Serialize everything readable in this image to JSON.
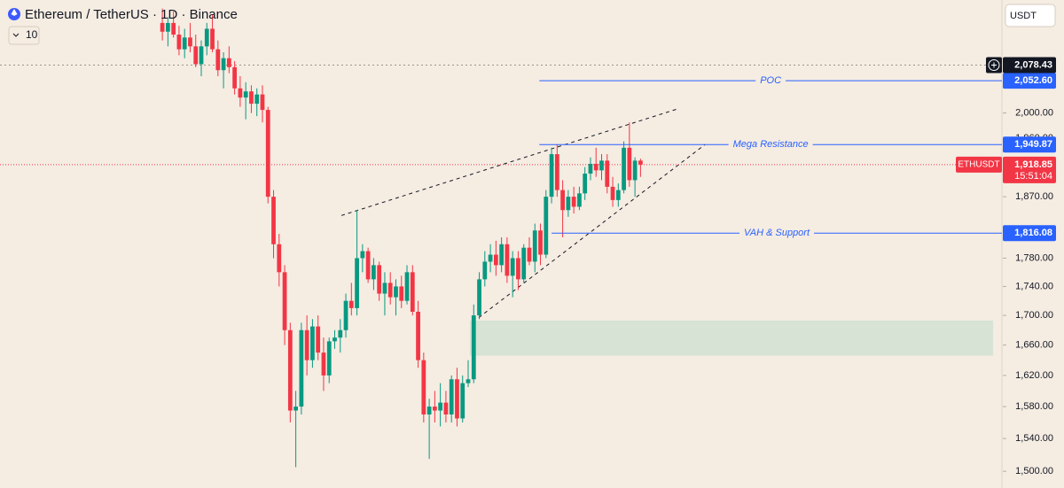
{
  "header": {
    "symbol_title": "Ethereum / TetherUS · 1D · Binance",
    "indicator_value": "10",
    "currency_button": "USDT"
  },
  "chart_data": {
    "type": "candlestick",
    "log_scale": true,
    "up_color": "#089981",
    "down_color": "#f23645",
    "ylim": [
      1480,
      2190
    ],
    "xlim": [
      -29.2,
      151
    ],
    "yticks": [
      {
        "value": 1500,
        "label": "1,500.00"
      },
      {
        "value": 1540,
        "label": "1,540.00"
      },
      {
        "value": 1580,
        "label": "1,580.00"
      },
      {
        "value": 1620,
        "label": "1,620.00"
      },
      {
        "value": 1660,
        "label": "1,660.00"
      },
      {
        "value": 1700,
        "label": "1,700.00"
      },
      {
        "value": 1740,
        "label": "1,740.00"
      },
      {
        "value": 1780,
        "label": "1,780.00"
      },
      {
        "value": 1870,
        "label": "1,870.00"
      },
      {
        "value": 1960,
        "label": "1,960.00"
      },
      {
        "value": 2000,
        "label": "2,000.00"
      }
    ],
    "ohlc": [
      [
        2150,
        2175,
        2120,
        2135
      ],
      [
        2135,
        2160,
        2110,
        2150
      ],
      [
        2150,
        2170,
        2125,
        2130
      ],
      [
        2130,
        2145,
        2095,
        2105
      ],
      [
        2105,
        2140,
        2090,
        2125
      ],
      [
        2125,
        2150,
        2100,
        2110
      ],
      [
        2110,
        2130,
        2075,
        2080
      ],
      [
        2080,
        2120,
        2060,
        2110
      ],
      [
        2110,
        2150,
        2095,
        2140
      ],
      [
        2140,
        2165,
        2100,
        2105
      ],
      [
        2105,
        2120,
        2060,
        2070
      ],
      [
        2070,
        2100,
        2040,
        2090
      ],
      [
        2090,
        2110,
        2065,
        2075
      ],
      [
        2075,
        2085,
        2030,
        2040
      ],
      [
        2040,
        2060,
        2010,
        2025
      ],
      [
        2025,
        2050,
        1990,
        2035
      ],
      [
        2035,
        2045,
        2000,
        2015
      ],
      [
        2015,
        2040,
        1995,
        2030
      ],
      [
        2030,
        2045,
        1985,
        2005
      ],
      [
        2005,
        2010,
        1860,
        1870
      ],
      [
        1870,
        1880,
        1780,
        1800
      ],
      [
        1800,
        1815,
        1740,
        1760
      ],
      [
        1760,
        1770,
        1660,
        1680
      ],
      [
        1680,
        1690,
        1560,
        1575
      ],
      [
        1575,
        1600,
        1505,
        1580
      ],
      [
        1580,
        1690,
        1570,
        1680
      ],
      [
        1680,
        1700,
        1620,
        1640
      ],
      [
        1640,
        1695,
        1630,
        1685
      ],
      [
        1685,
        1700,
        1640,
        1650
      ],
      [
        1650,
        1670,
        1600,
        1620
      ],
      [
        1620,
        1670,
        1610,
        1665
      ],
      [
        1665,
        1680,
        1655,
        1670
      ],
      [
        1670,
        1695,
        1650,
        1680
      ],
      [
        1680,
        1730,
        1670,
        1720
      ],
      [
        1720,
        1745,
        1700,
        1710
      ],
      [
        1710,
        1850,
        1700,
        1780
      ],
      [
        1780,
        1800,
        1760,
        1790
      ],
      [
        1790,
        1795,
        1745,
        1750
      ],
      [
        1750,
        1780,
        1735,
        1770
      ],
      [
        1770,
        1775,
        1720,
        1730
      ],
      [
        1730,
        1760,
        1700,
        1745
      ],
      [
        1745,
        1760,
        1715,
        1725
      ],
      [
        1725,
        1750,
        1700,
        1740
      ],
      [
        1740,
        1755,
        1710,
        1720
      ],
      [
        1720,
        1770,
        1715,
        1760
      ],
      [
        1760,
        1770,
        1700,
        1705
      ],
      [
        1705,
        1720,
        1630,
        1640
      ],
      [
        1640,
        1650,
        1560,
        1570
      ],
      [
        1570,
        1590,
        1515,
        1580
      ],
      [
        1580,
        1600,
        1560,
        1575
      ],
      [
        1575,
        1610,
        1555,
        1585
      ],
      [
        1585,
        1600,
        1560,
        1570
      ],
      [
        1570,
        1620,
        1560,
        1615
      ],
      [
        1615,
        1630,
        1555,
        1565
      ],
      [
        1565,
        1620,
        1560,
        1610
      ],
      [
        1610,
        1640,
        1605,
        1615
      ],
      [
        1615,
        1715,
        1610,
        1700
      ],
      [
        1700,
        1760,
        1695,
        1750
      ],
      [
        1750,
        1790,
        1740,
        1775
      ],
      [
        1775,
        1800,
        1760,
        1785
      ],
      [
        1785,
        1805,
        1755,
        1770
      ],
      [
        1770,
        1810,
        1760,
        1800
      ],
      [
        1800,
        1810,
        1745,
        1755
      ],
      [
        1755,
        1790,
        1725,
        1780
      ],
      [
        1780,
        1790,
        1735,
        1750
      ],
      [
        1750,
        1800,
        1745,
        1795
      ],
      [
        1795,
        1810,
        1770,
        1775
      ],
      [
        1775,
        1830,
        1760,
        1820
      ],
      [
        1820,
        1830,
        1770,
        1785
      ],
      [
        1785,
        1880,
        1780,
        1870
      ],
      [
        1870,
        1945,
        1860,
        1935
      ],
      [
        1935,
        1950,
        1870,
        1880
      ],
      [
        1880,
        1895,
        1810,
        1850
      ],
      [
        1850,
        1880,
        1840,
        1870
      ],
      [
        1870,
        1885,
        1845,
        1855
      ],
      [
        1855,
        1885,
        1850,
        1875
      ],
      [
        1875,
        1915,
        1865,
        1905
      ],
      [
        1905,
        1930,
        1895,
        1920
      ],
      [
        1920,
        1945,
        1900,
        1910
      ],
      [
        1910,
        1935,
        1895,
        1925
      ],
      [
        1925,
        1935,
        1875,
        1885
      ],
      [
        1885,
        1900,
        1855,
        1865
      ],
      [
        1865,
        1890,
        1855,
        1880
      ],
      [
        1880,
        1955,
        1875,
        1945
      ],
      [
        1945,
        1985,
        1885,
        1895
      ],
      [
        1895,
        1930,
        1870,
        1925
      ],
      [
        1925,
        1928,
        1900,
        1918.85
      ]
    ],
    "price_lines": [
      {
        "name": "POC",
        "value": 2052.6,
        "label": "2,052.60",
        "start_x": 67.8
      },
      {
        "name": "Mega Resistance",
        "value": 1949.87,
        "label": "1,949.87",
        "start_x": 67.8
      },
      {
        "name": "VAH & Support",
        "value": 1816.08,
        "label": "1,816.08",
        "start_x": 70
      }
    ],
    "crosshair": {
      "value": 2078.43,
      "label": "2,078.43"
    },
    "last_price": {
      "symbol": "ETHUSDT",
      "value": 1918.85,
      "label": "1,918.85",
      "countdown": "15:51:04"
    },
    "zone": {
      "low": 1646,
      "high": 1693,
      "x_start": 55.3,
      "x_end": 149.4
    },
    "trendlines": [
      {
        "x": [
          32.2,
          92.8
        ],
        "y": [
          1842,
          2007
        ]
      },
      {
        "x": [
          56.9,
          97.6
        ],
        "y": [
          1697,
          1950
        ]
      }
    ]
  }
}
